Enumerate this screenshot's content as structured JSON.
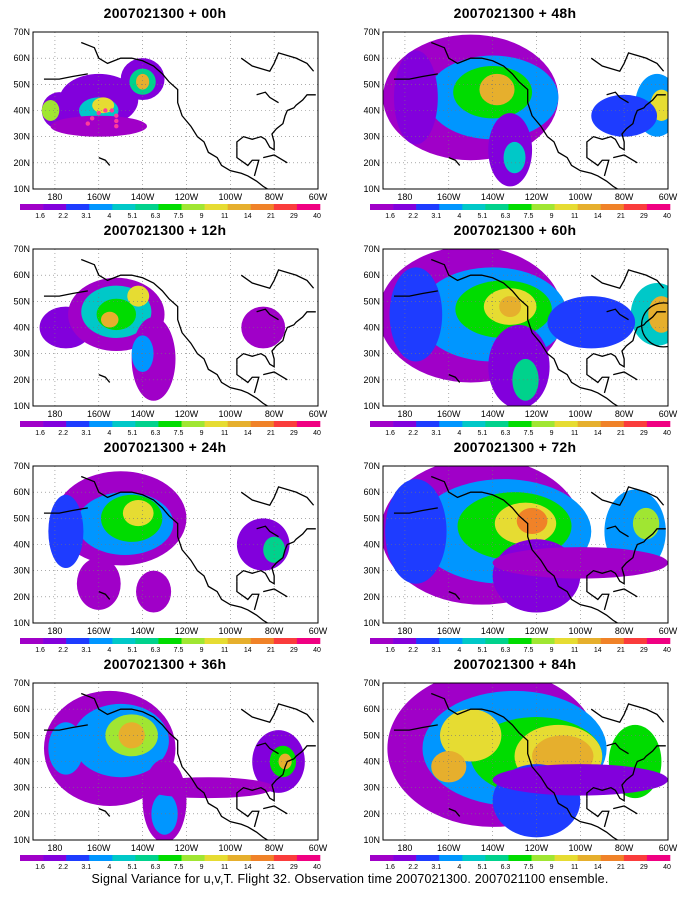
{
  "figure": {
    "caption": "Signal Variance for u,v,T. Flight 32. Observation time 2007021300. 2007021100 ensemble.",
    "lat_labels": [
      "70N",
      "60N",
      "50N",
      "40N",
      "30N",
      "20N",
      "10N"
    ],
    "lon_labels": [
      "180",
      "160W",
      "140W",
      "120W",
      "100W",
      "80W",
      "60W"
    ],
    "colorbar": {
      "labels": [
        "1.6",
        "2.2",
        "3.1",
        "4",
        "5.1",
        "6.3",
        "7.5",
        "9",
        "11",
        "14",
        "21",
        "29",
        "40"
      ],
      "colors": [
        "#a000c8",
        "#8200dc",
        "#1e3cff",
        "#0096ff",
        "#00c8c8",
        "#00d28c",
        "#00dc00",
        "#a0e632",
        "#e6dc32",
        "#e6af2d",
        "#f08228",
        "#fa3c3c",
        "#f00082"
      ]
    },
    "panels": [
      {
        "title": "2007021300 + 00h",
        "lead": "00h",
        "column": "left",
        "row": 1
      },
      {
        "title": "2007021300 + 48h",
        "lead": "48h",
        "column": "right",
        "row": 1
      },
      {
        "title": "2007021300 + 12h",
        "lead": "12h",
        "column": "left",
        "row": 2
      },
      {
        "title": "2007021300 + 60h",
        "lead": "60h",
        "column": "right",
        "row": 2
      },
      {
        "title": "2007021300 + 24h",
        "lead": "24h",
        "column": "left",
        "row": 3
      },
      {
        "title": "2007021300 + 72h",
        "lead": "72h",
        "column": "right",
        "row": 3
      },
      {
        "title": "2007021300 + 36h",
        "lead": "36h",
        "column": "left",
        "row": 4
      },
      {
        "title": "2007021300 + 84h",
        "lead": "84h",
        "column": "right",
        "row": 4
      }
    ],
    "flight_track_color": "#ff3c9a",
    "coastline_color": "#000000"
  }
}
